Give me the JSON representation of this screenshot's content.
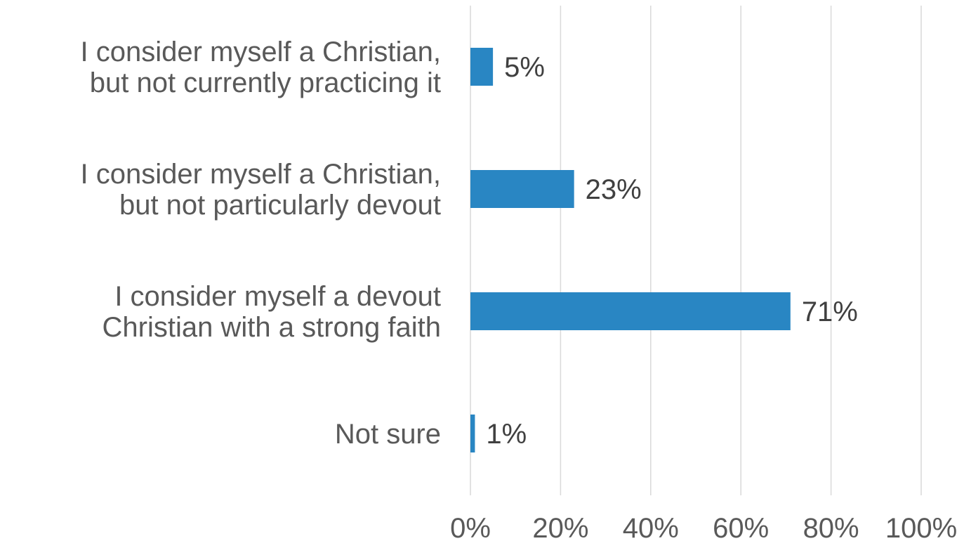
{
  "chart_data": {
    "type": "bar",
    "orientation": "horizontal",
    "categories": [
      [
        "I consider myself a Christian,",
        "but not currently practicing it"
      ],
      [
        "I consider myself a Christian,",
        "but not particularly devout"
      ],
      [
        "I consider myself a devout",
        "Christian with a strong faith"
      ],
      [
        "Not sure"
      ]
    ],
    "values": [
      5,
      23,
      71,
      1
    ],
    "data_labels": [
      "5%",
      "23%",
      "71%",
      "1%"
    ],
    "xlim": [
      0,
      100
    ],
    "x_ticks": [
      "0%",
      "20%",
      "40%",
      "60%",
      "80%",
      "100%"
    ],
    "title": "",
    "xlabel": "",
    "ylabel": "",
    "grid": "vertical",
    "legend": "none",
    "bar_color": "#2986c3",
    "grid_color": "#d9d9d9",
    "text_color": "#595959"
  }
}
